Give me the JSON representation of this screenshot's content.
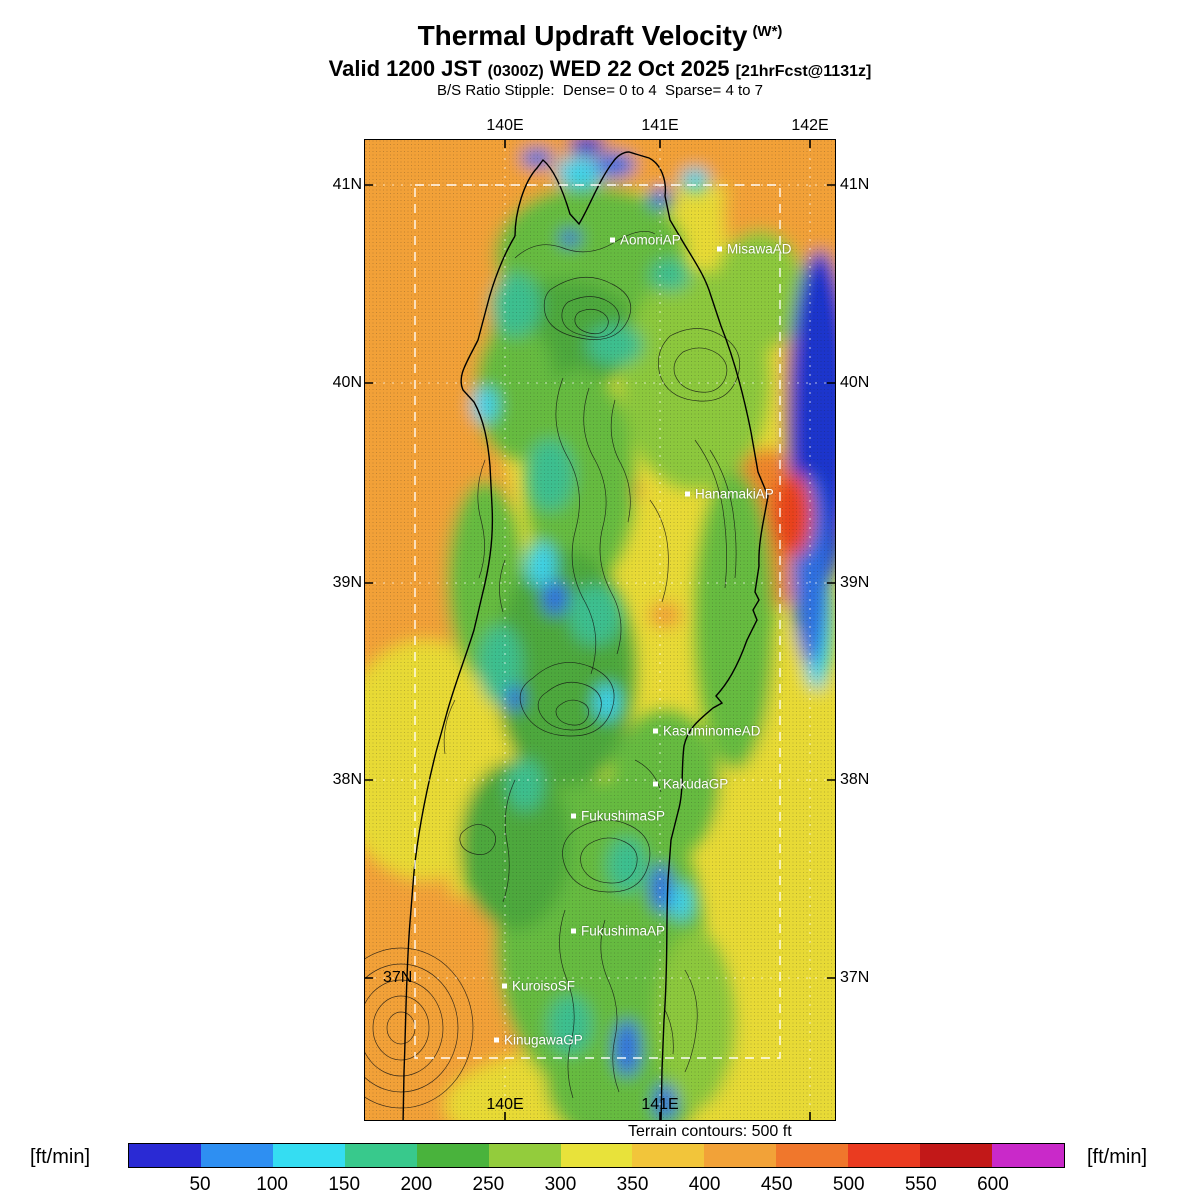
{
  "header": {
    "title": "Thermal Updraft Velocity",
    "title_unit": "(W*)",
    "valid_prefix": "Valid 1200 JST ",
    "valid_zulu": "(0300Z)",
    "valid_date": " WED 22 Oct 2025 ",
    "valid_fcst": "[21hrFcst@1131z]",
    "stipple_line": "B/S Ratio Stipple:  Dense= 0 to 4  Sparse= 4 to 7"
  },
  "map": {
    "top_lon_labels": [
      "140E",
      "141E",
      "142E"
    ],
    "bottom_lon_labels": [
      "140E",
      "141E"
    ],
    "left_lat_labels": [
      "41N",
      "40N",
      "39N",
      "38N"
    ],
    "inner_lat_label": "37N",
    "right_lat_labels": [
      "41N",
      "40N",
      "39N",
      "38N",
      "37N"
    ],
    "stations": [
      {
        "label": "AomoriAP"
      },
      {
        "label": "MisawaAD"
      },
      {
        "label": "HanamakiAP"
      },
      {
        "label": "KasuminomeAD"
      },
      {
        "label": "KakudaGP"
      },
      {
        "label": "FukushimaSP"
      },
      {
        "label": "FukushimaAP"
      },
      {
        "label": "KuroisoSF"
      },
      {
        "label": "KinugawaGP"
      }
    ],
    "footnote": "Terrain contours: 500 ft"
  },
  "colorbar": {
    "unit_left": "[ft/min]",
    "unit_right": "[ft/min]",
    "tick_labels": [
      "50",
      "100",
      "150",
      "200",
      "250",
      "300",
      "350",
      "400",
      "450",
      "500",
      "550",
      "600"
    ],
    "colors": [
      "#2a2ad4",
      "#2e8ff2",
      "#35ddf2",
      "#38c98c",
      "#49b33c",
      "#93cc3c",
      "#e8e23a",
      "#f2c53a",
      "#f2a238",
      "#f0772c",
      "#ea3b20",
      "#c21818",
      "#c929c9"
    ]
  },
  "chart_data": {
    "type": "heatmap",
    "title": "Thermal Updraft Velocity (W*)",
    "valid_time": "1200 JST (0300Z) WED 22 Oct 2025",
    "forecast_init": "21hrFcst@1131z",
    "stipple_note": "B/S Ratio Stipple: Dense= 0 to 4, Sparse= 4 to 7",
    "units": "ft/min",
    "colorbar_values": [
      50,
      100,
      150,
      200,
      250,
      300,
      350,
      400,
      450,
      500,
      550,
      600
    ],
    "colorbar_colors": [
      "#2a2ad4",
      "#2e8ff2",
      "#35ddf2",
      "#38c98c",
      "#49b33c",
      "#93cc3c",
      "#e8e23a",
      "#f2c53a",
      "#f2a238",
      "#f0772c",
      "#ea3b20",
      "#c21818",
      "#c929c9"
    ],
    "lon_ticks": [
      "140E",
      "141E",
      "142E"
    ],
    "lat_ticks": [
      "37N",
      "38N",
      "39N",
      "40N",
      "41N"
    ],
    "terrain_contour_interval": "500 ft",
    "stations": [
      "AomoriAP",
      "MisawaAD",
      "HanamakiAP",
      "KasuminomeAD",
      "KakudaGP",
      "FukushimaSP",
      "FukushimaAP",
      "KuroisoSF",
      "KinugawaGP"
    ]
  }
}
